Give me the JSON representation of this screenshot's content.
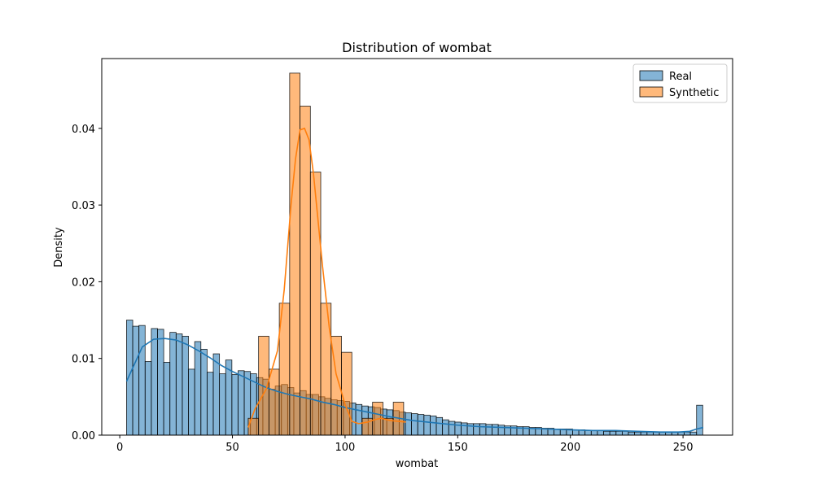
{
  "chart_data": {
    "type": "histogram",
    "title": "Distribution of wombat",
    "xlabel": "wombat",
    "ylabel": "Density",
    "xlim": [
      -8,
      272
    ],
    "ylim": [
      0,
      0.0491
    ],
    "xticks": [
      0,
      50,
      100,
      150,
      200,
      250
    ],
    "xtick_labels": [
      "0",
      "50",
      "100",
      "150",
      "200",
      "250"
    ],
    "yticks": [
      0,
      0.01,
      0.02,
      0.03,
      0.04
    ],
    "ytick_labels": [
      "0.00",
      "0.01",
      "0.02",
      "0.03",
      "0.04"
    ],
    "legend": {
      "position": "upper right",
      "entries": [
        "Real",
        "Synthetic"
      ]
    },
    "series": [
      {
        "name": "Real",
        "color": "#1f77b4",
        "bin_edges_start": 3,
        "bin_width": 2.75,
        "densities": [
          0.015,
          0.0142,
          0.0143,
          0.0096,
          0.0139,
          0.0138,
          0.0095,
          0.0134,
          0.0132,
          0.0129,
          0.0086,
          0.0122,
          0.0112,
          0.0082,
          0.0106,
          0.008,
          0.0098,
          0.0079,
          0.0084,
          0.0083,
          0.008,
          0.0075,
          0.0073,
          0.006,
          0.0064,
          0.0066,
          0.0062,
          0.0055,
          0.0058,
          0.0053,
          0.0053,
          0.005,
          0.0048,
          0.0046,
          0.0045,
          0.0044,
          0.0042,
          0.004,
          0.0038,
          0.0037,
          0.0036,
          0.0034,
          0.0033,
          0.0032,
          0.003,
          0.0029,
          0.0028,
          0.0027,
          0.0026,
          0.0025,
          0.0023,
          0.002,
          0.0018,
          0.0017,
          0.0016,
          0.0015,
          0.0015,
          0.0015,
          0.0014,
          0.0014,
          0.0013,
          0.0012,
          0.0012,
          0.0011,
          0.0011,
          0.001,
          0.001,
          0.0009,
          0.0009,
          0.0008,
          0.0008,
          0.0008,
          0.0007,
          0.0007,
          0.0006,
          0.0006,
          0.0006,
          0.0005,
          0.0005,
          0.0005,
          0.0005,
          0.0004,
          0.0004,
          0.0004,
          0.0004,
          0.0004,
          0.0004,
          0.0004,
          0.0004,
          0.0004,
          0.0004,
          0.0004,
          0.0039
        ],
        "kde_x": [
          3,
          10,
          15,
          20,
          25,
          30,
          35,
          40,
          45,
          50,
          55,
          60,
          65,
          70,
          75,
          80,
          85,
          90,
          95,
          100,
          110,
          120,
          130,
          140,
          150,
          160,
          170,
          180,
          190,
          200,
          210,
          220,
          230,
          240,
          248,
          253,
          256,
          259
        ],
        "kde_y": [
          0.007,
          0.0115,
          0.0125,
          0.0126,
          0.0124,
          0.0118,
          0.011,
          0.0101,
          0.0091,
          0.0083,
          0.0076,
          0.0069,
          0.0062,
          0.0057,
          0.0053,
          0.005,
          0.0047,
          0.0043,
          0.004,
          0.0036,
          0.003,
          0.0024,
          0.0019,
          0.0016,
          0.0013,
          0.0011,
          0.001,
          0.0009,
          0.0008,
          0.0007,
          0.0006,
          0.0006,
          0.0005,
          0.0004,
          0.0004,
          0.0005,
          0.0008,
          0.001
        ]
      },
      {
        "name": "Synthetic",
        "color": "#ff7f0e",
        "bin_edges_start": 57,
        "bin_width": 4.6,
        "densities": [
          0.0022,
          0.0129,
          0.0086,
          0.0172,
          0.0472,
          0.0429,
          0.0343,
          0.0172,
          0.0129,
          0.0108,
          0,
          0.0022,
          0.0043,
          0.0022,
          0.0043
        ],
        "kde_x": [
          57,
          60,
          65,
          70,
          73,
          76,
          78,
          80,
          82,
          84,
          86,
          88,
          90,
          93,
          96,
          100,
          103,
          106,
          108,
          110,
          113,
          116,
          120,
          124,
          127
        ],
        "kde_y": [
          0.001,
          0.0034,
          0.006,
          0.011,
          0.019,
          0.03,
          0.036,
          0.0398,
          0.04,
          0.0385,
          0.034,
          0.028,
          0.022,
          0.014,
          0.008,
          0.004,
          0.0018,
          0.0015,
          0.0016,
          0.0017,
          0.002,
          0.0022,
          0.0019,
          0.0018,
          0.0017
        ]
      }
    ]
  }
}
